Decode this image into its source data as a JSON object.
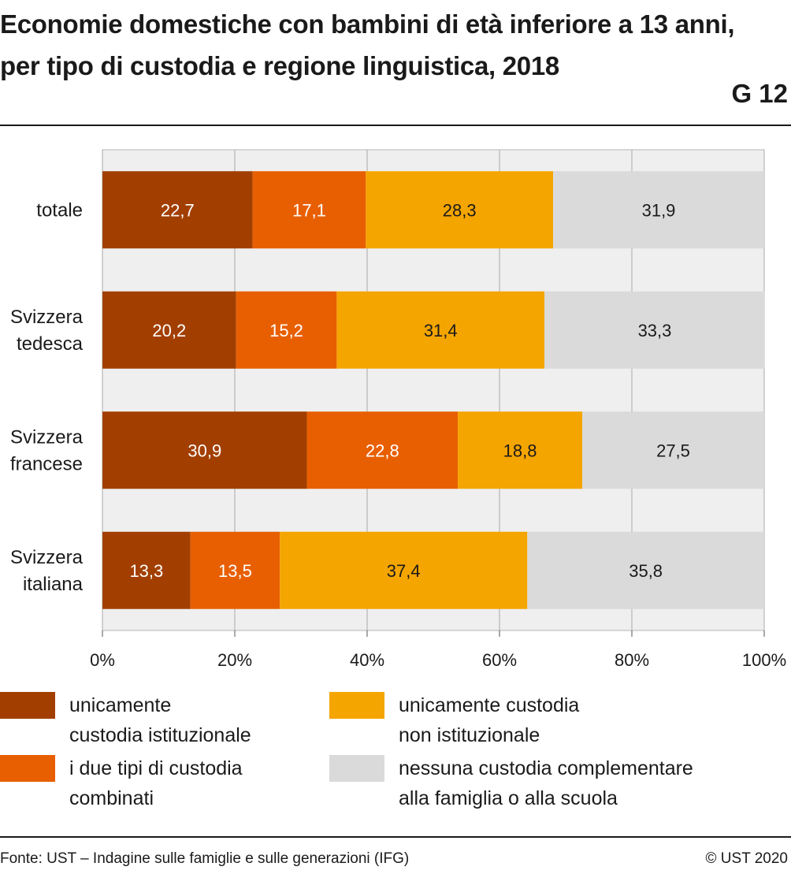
{
  "header": {
    "title": "Economie domestiche con bambini di età inferiore a 13 anni, per tipo di custodia e regione linguistica, 2018",
    "code": "G 12"
  },
  "chart_data": {
    "type": "bar",
    "orientation": "horizontal",
    "stacked": true,
    "categories": [
      [
        "totale"
      ],
      [
        "Svizzera",
        "tedesca"
      ],
      [
        "Svizzera",
        "francese"
      ],
      [
        "Svizzera",
        "italiana"
      ]
    ],
    "series": [
      {
        "name": "unicamente custodia istituzionale",
        "color": "#a23f00",
        "label_color": "#ffffff",
        "values": [
          22.7,
          20.2,
          30.9,
          13.3
        ]
      },
      {
        "name": "i due tipi di custodia combinati",
        "color": "#e85f02",
        "label_color": "#ffffff",
        "values": [
          17.1,
          15.2,
          22.8,
          13.5
        ]
      },
      {
        "name": "unicamente custodia non istituzionale",
        "color": "#f5a500",
        "label_color": "#1a1a1a",
        "values": [
          28.3,
          31.4,
          18.8,
          37.4
        ]
      },
      {
        "name": "nessuna custodia complementare alla famiglia o alla scuola",
        "color": "#dadada",
        "label_color": "#1a1a1a",
        "values": [
          31.9,
          33.3,
          27.5,
          35.8
        ]
      }
    ],
    "data_labels": [
      [
        "22,7",
        "20,2",
        "30,9",
        "13,3"
      ],
      [
        "17,1",
        "15,2",
        "22,8",
        "13,5"
      ],
      [
        "28,3",
        "31,4",
        "18,8",
        "37,4"
      ],
      [
        "31,9",
        "33,3",
        "27,5",
        "35,8"
      ]
    ],
    "x_ticks": [
      0,
      20,
      40,
      60,
      80,
      100
    ],
    "x_tick_labels": [
      "0%",
      "20%",
      "40%",
      "60%",
      "80%",
      "100%"
    ],
    "xlim": [
      0,
      100
    ],
    "grid": true,
    "legend_position": "bottom",
    "plot_background": "#efefef"
  },
  "legend": {
    "items": [
      {
        "lines": [
          "unicamente",
          "custodia istituzionale"
        ],
        "color": "#a23f00"
      },
      {
        "lines": [
          "unicamente custodia",
          "non istituzionale"
        ],
        "color": "#f5a500"
      },
      {
        "lines": [
          "i due tipi di custodia",
          "combinati"
        ],
        "color": "#e85f02"
      },
      {
        "lines": [
          "nessuna custodia complementare",
          "alla famiglia o alla scuola"
        ],
        "color": "#dadada"
      }
    ]
  },
  "footer": {
    "source": "Fonte: UST – Indagine sulle famiglie e sulle generazioni (IFG)",
    "copyright": "© UST 2020"
  }
}
